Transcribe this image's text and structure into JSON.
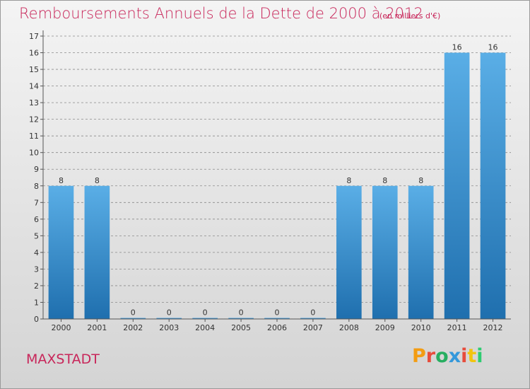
{
  "header": {
    "title": "Remboursements Annuels de la Dette de 2000 à 2012",
    "subtitle": "(en milliers d'€)"
  },
  "footer": {
    "city": "MAXSTADT",
    "logo": {
      "text": "Proxiti",
      "colors": [
        "#f39c12",
        "#e74c3c",
        "#27ae60",
        "#3498db",
        "#e74c3c",
        "#f1c40f",
        "#2ecc71"
      ]
    }
  },
  "colors": {
    "title": "#c8265a",
    "bar_light": "#5aaee6",
    "bar_dark": "#1f6fae",
    "grid": "#8a8a8a"
  },
  "chart_data": {
    "type": "bar",
    "title": "Remboursements Annuels de la Dette de 2000 à 2012",
    "subtitle": "(en milliers d'€)",
    "xlabel": "",
    "ylabel": "",
    "categories": [
      "2000",
      "2001",
      "2002",
      "2003",
      "2004",
      "2005",
      "2006",
      "2007",
      "2008",
      "2009",
      "2010",
      "2011",
      "2012"
    ],
    "values": [
      8,
      8,
      0,
      0,
      0,
      0,
      0,
      0,
      8,
      8,
      8,
      16,
      16
    ],
    "ylim": [
      0,
      17
    ],
    "yticks": [
      0,
      1,
      2,
      3,
      4,
      5,
      6,
      7,
      8,
      9,
      10,
      11,
      12,
      13,
      14,
      15,
      16,
      17
    ],
    "grid": "horizontal dashed",
    "legend": "none"
  }
}
